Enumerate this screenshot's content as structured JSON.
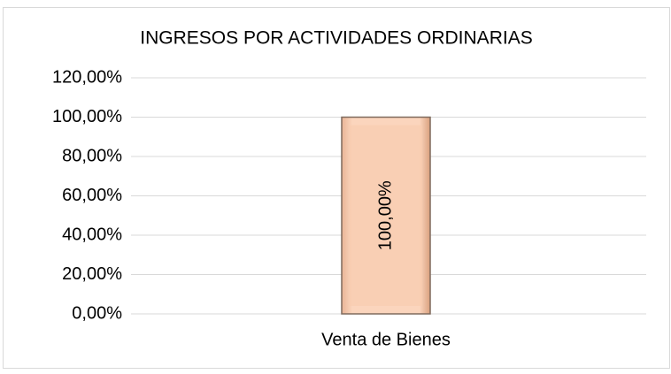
{
  "chart_data": {
    "type": "bar",
    "title": "INGRESOS POR ACTIVIDADES ORDINARIAS",
    "categories": [
      "Venta de Bienes"
    ],
    "values": [
      100
    ],
    "value_labels": [
      "100,00%"
    ],
    "color": "#f8cbad",
    "ylim": [
      0,
      120
    ],
    "yticks": [
      {
        "value": 0,
        "label": "0,00%"
      },
      {
        "value": 20,
        "label": "20,00%"
      },
      {
        "value": 40,
        "label": "40,00%"
      },
      {
        "value": 60,
        "label": "60,00%"
      },
      {
        "value": 80,
        "label": "80,00%"
      },
      {
        "value": 100,
        "label": "100,00%"
      },
      {
        "value": 120,
        "label": "120,00%"
      }
    ],
    "grid": true
  }
}
